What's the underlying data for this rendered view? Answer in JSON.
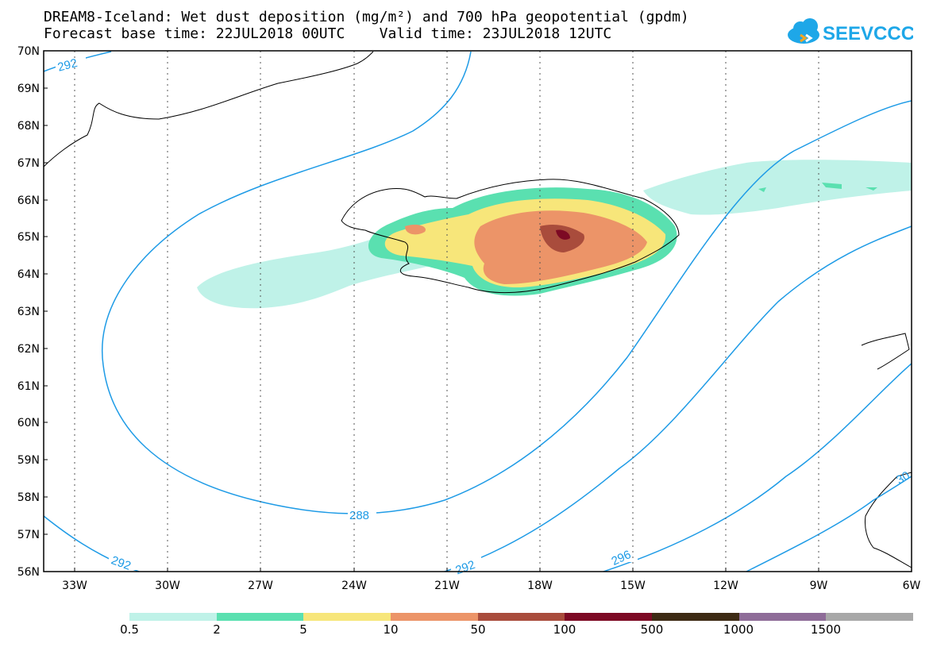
{
  "title_line1": "DREAM8-Iceland: Wet dust deposition (mg/m²) and 700 hPa geopotential (gpdm)",
  "title_line2": "Forecast base time: 22JUL2018 00UTC    Valid time: 23JUL2018 12UTC",
  "logo_text": "SEEVCCC",
  "lat_labels": [
    "70N",
    "69N",
    "68N",
    "67N",
    "66N",
    "65N",
    "64N",
    "63N",
    "62N",
    "61N",
    "60N",
    "59N",
    "58N",
    "57N",
    "56N"
  ],
  "lon_labels": [
    "33W",
    "30W",
    "27W",
    "24W",
    "21W",
    "18W",
    "15W",
    "12W",
    "9W",
    "6W"
  ],
  "contour_labels": [
    "292",
    "288",
    "292",
    "296",
    "292",
    "30"
  ],
  "contour_color": "#1e9be6",
  "legend": {
    "colors": [
      "#bff2e8",
      "#5ae0b0",
      "#f7e67a",
      "#ec9468",
      "#a94c3c",
      "#7d0a24",
      "#3d2a14",
      "#8e6c98",
      "#a8a8a8"
    ],
    "labels": [
      "0.5",
      "2",
      "5",
      "10",
      "50",
      "100",
      "500",
      "1000",
      "1500"
    ]
  }
}
